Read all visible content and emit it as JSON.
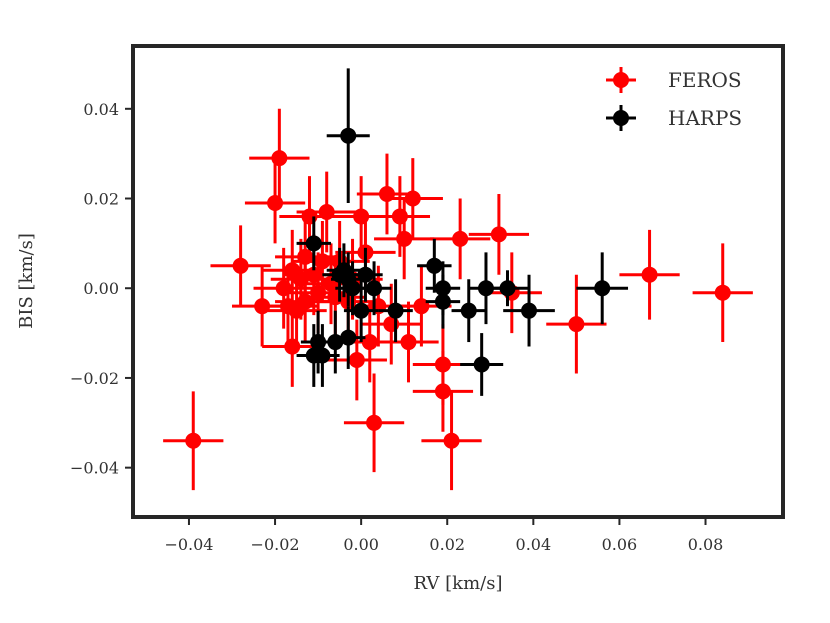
{
  "chart_data": {
    "type": "scatter",
    "title": "",
    "xlabel": "RV [km/s]",
    "ylabel": "BIS [km/s]",
    "xlim": [
      -0.053,
      0.098
    ],
    "ylim": [
      -0.051,
      0.054
    ],
    "xticks": [
      -0.04,
      -0.02,
      0.0,
      0.02,
      0.04,
      0.06,
      0.08
    ],
    "xtick_labels": [
      "−0.04",
      "−0.02",
      "0.00",
      "0.02",
      "0.04",
      "0.06",
      "0.08"
    ],
    "yticks": [
      -0.04,
      -0.02,
      0.0,
      0.02,
      0.04
    ],
    "ytick_labels": [
      "−0.04",
      "−0.02",
      "0.00",
      "0.02",
      "0.04"
    ],
    "grid": false,
    "legend_position": "top-right",
    "series": [
      {
        "name": "FEROS",
        "color": "#ff0000",
        "points": [
          {
            "x": -0.039,
            "y": -0.034,
            "xerr": 0.007,
            "yerr": 0.011
          },
          {
            "x": -0.028,
            "y": 0.005,
            "xerr": 0.007,
            "yerr": 0.009
          },
          {
            "x": -0.023,
            "y": -0.004,
            "xerr": 0.007,
            "yerr": 0.009
          },
          {
            "x": -0.02,
            "y": 0.019,
            "xerr": 0.007,
            "yerr": 0.009
          },
          {
            "x": -0.019,
            "y": 0.029,
            "xerr": 0.007,
            "yerr": 0.011
          },
          {
            "x": -0.018,
            "y": 0.0,
            "xerr": 0.007,
            "yerr": 0.009
          },
          {
            "x": -0.017,
            "y": -0.004,
            "xerr": 0.007,
            "yerr": 0.009
          },
          {
            "x": -0.016,
            "y": 0.004,
            "xerr": 0.007,
            "yerr": 0.009
          },
          {
            "x": -0.016,
            "y": -0.013,
            "xerr": 0.007,
            "yerr": 0.009
          },
          {
            "x": -0.015,
            "y": -0.005,
            "xerr": 0.007,
            "yerr": 0.009
          },
          {
            "x": -0.014,
            "y": 0.002,
            "xerr": 0.007,
            "yerr": 0.009
          },
          {
            "x": -0.013,
            "y": 0.007,
            "xerr": 0.007,
            "yerr": 0.009
          },
          {
            "x": -0.013,
            "y": -0.003,
            "xerr": 0.007,
            "yerr": 0.009
          },
          {
            "x": -0.012,
            "y": 0.016,
            "xerr": 0.007,
            "yerr": 0.009
          },
          {
            "x": -0.011,
            "y": 0.003,
            "xerr": 0.007,
            "yerr": 0.009
          },
          {
            "x": -0.01,
            "y": -0.001,
            "xerr": 0.007,
            "yerr": 0.009
          },
          {
            "x": -0.009,
            "y": 0.006,
            "xerr": 0.007,
            "yerr": 0.009
          },
          {
            "x": -0.008,
            "y": 0.017,
            "xerr": 0.007,
            "yerr": 0.009
          },
          {
            "x": -0.007,
            "y": 0.001,
            "xerr": 0.007,
            "yerr": 0.009
          },
          {
            "x": -0.006,
            "y": -0.002,
            "xerr": 0.007,
            "yerr": 0.009
          },
          {
            "x": -0.005,
            "y": 0.006,
            "xerr": 0.007,
            "yerr": 0.009
          },
          {
            "x": -0.003,
            "y": -0.003,
            "xerr": 0.007,
            "yerr": 0.009
          },
          {
            "x": -0.002,
            "y": 0.002,
            "xerr": 0.007,
            "yerr": 0.009
          },
          {
            "x": -0.001,
            "y": -0.016,
            "xerr": 0.007,
            "yerr": 0.009
          },
          {
            "x": 0.0,
            "y": 0.016,
            "xerr": 0.007,
            "yerr": 0.009
          },
          {
            "x": 0.001,
            "y": 0.008,
            "xerr": 0.007,
            "yerr": 0.009
          },
          {
            "x": 0.002,
            "y": -0.012,
            "xerr": 0.007,
            "yerr": 0.009
          },
          {
            "x": 0.003,
            "y": -0.03,
            "xerr": 0.007,
            "yerr": 0.011
          },
          {
            "x": 0.004,
            "y": -0.004,
            "xerr": 0.007,
            "yerr": 0.009
          },
          {
            "x": 0.006,
            "y": 0.021,
            "xerr": 0.007,
            "yerr": 0.009
          },
          {
            "x": 0.007,
            "y": -0.008,
            "xerr": 0.007,
            "yerr": 0.009
          },
          {
            "x": 0.009,
            "y": 0.016,
            "xerr": 0.007,
            "yerr": 0.009
          },
          {
            "x": 0.01,
            "y": 0.011,
            "xerr": 0.007,
            "yerr": 0.009
          },
          {
            "x": 0.011,
            "y": -0.012,
            "xerr": 0.007,
            "yerr": 0.009
          },
          {
            "x": 0.012,
            "y": 0.02,
            "xerr": 0.007,
            "yerr": 0.009
          },
          {
            "x": 0.014,
            "y": -0.004,
            "xerr": 0.007,
            "yerr": 0.009
          },
          {
            "x": 0.019,
            "y": -0.017,
            "xerr": 0.007,
            "yerr": 0.009
          },
          {
            "x": 0.019,
            "y": -0.023,
            "xerr": 0.007,
            "yerr": 0.009
          },
          {
            "x": 0.021,
            "y": -0.034,
            "xerr": 0.007,
            "yerr": 0.011
          },
          {
            "x": 0.023,
            "y": 0.011,
            "xerr": 0.007,
            "yerr": 0.009
          },
          {
            "x": 0.032,
            "y": 0.012,
            "xerr": 0.007,
            "yerr": 0.009
          },
          {
            "x": 0.035,
            "y": -0.001,
            "xerr": 0.007,
            "yerr": 0.009
          },
          {
            "x": 0.05,
            "y": -0.008,
            "xerr": 0.007,
            "yerr": 0.011
          },
          {
            "x": 0.067,
            "y": 0.003,
            "xerr": 0.007,
            "yerr": 0.01
          },
          {
            "x": 0.084,
            "y": -0.001,
            "xerr": 0.007,
            "yerr": 0.011
          }
        ]
      },
      {
        "name": "HARPS",
        "color": "#000000",
        "points": [
          {
            "x": -0.011,
            "y": 0.01,
            "xerr": 0.004,
            "yerr": 0.006
          },
          {
            "x": -0.011,
            "y": -0.015,
            "xerr": 0.004,
            "yerr": 0.007
          },
          {
            "x": -0.01,
            "y": -0.012,
            "xerr": 0.004,
            "yerr": 0.007
          },
          {
            "x": -0.009,
            "y": -0.015,
            "xerr": 0.004,
            "yerr": 0.007
          },
          {
            "x": -0.006,
            "y": -0.012,
            "xerr": 0.004,
            "yerr": 0.007
          },
          {
            "x": -0.005,
            "y": 0.003,
            "xerr": 0.004,
            "yerr": 0.006
          },
          {
            "x": -0.004,
            "y": 0.004,
            "xerr": 0.004,
            "yerr": 0.006
          },
          {
            "x": -0.003,
            "y": 0.034,
            "xerr": 0.005,
            "yerr": 0.015
          },
          {
            "x": -0.003,
            "y": 0.002,
            "xerr": 0.004,
            "yerr": 0.006
          },
          {
            "x": -0.003,
            "y": -0.011,
            "xerr": 0.004,
            "yerr": 0.007
          },
          {
            "x": -0.002,
            "y": 0.0,
            "xerr": 0.004,
            "yerr": 0.006
          },
          {
            "x": 0.0,
            "y": -0.005,
            "xerr": 0.004,
            "yerr": 0.007
          },
          {
            "x": 0.001,
            "y": 0.003,
            "xerr": 0.004,
            "yerr": 0.006
          },
          {
            "x": 0.003,
            "y": 0.0,
            "xerr": 0.004,
            "yerr": 0.006
          },
          {
            "x": 0.008,
            "y": -0.005,
            "xerr": 0.004,
            "yerr": 0.007
          },
          {
            "x": 0.017,
            "y": 0.005,
            "xerr": 0.004,
            "yerr": 0.006
          },
          {
            "x": 0.019,
            "y": 0.0,
            "xerr": 0.004,
            "yerr": 0.006
          },
          {
            "x": 0.019,
            "y": -0.003,
            "xerr": 0.004,
            "yerr": 0.006
          },
          {
            "x": 0.025,
            "y": -0.005,
            "xerr": 0.004,
            "yerr": 0.007
          },
          {
            "x": 0.028,
            "y": -0.017,
            "xerr": 0.005,
            "yerr": 0.007
          },
          {
            "x": 0.029,
            "y": 0.0,
            "xerr": 0.004,
            "yerr": 0.008
          },
          {
            "x": 0.034,
            "y": 0.0,
            "xerr": 0.005,
            "yerr": 0.004
          },
          {
            "x": 0.039,
            "y": -0.005,
            "xerr": 0.006,
            "yerr": 0.008
          },
          {
            "x": 0.056,
            "y": 0.0,
            "xerr": 0.006,
            "yerr": 0.008
          }
        ]
      }
    ]
  }
}
